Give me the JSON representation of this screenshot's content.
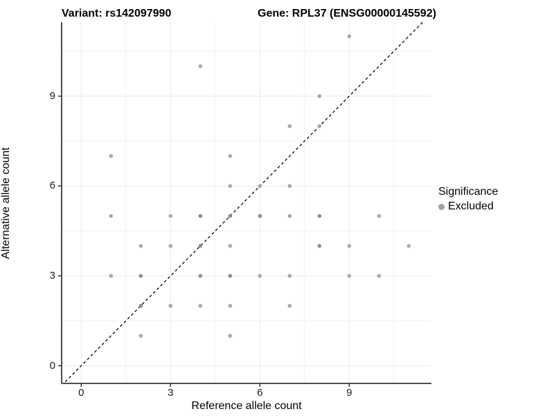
{
  "titles": {
    "variant": "Variant: rs142097990",
    "gene": "Gene: RPL37 (ENSG00000145592)"
  },
  "chart_data": {
    "type": "scatter",
    "xlabel": "Reference allele count",
    "ylabel": "Alternative allele count",
    "x_ticks": [
      0,
      3,
      6,
      9
    ],
    "y_ticks": [
      0,
      3,
      6,
      9
    ],
    "minor_ticks": [
      1.5,
      4.5,
      7.5,
      10.5
    ],
    "xlim": [
      -0.66,
      11.9
    ],
    "ylim": [
      -0.6,
      11.5
    ],
    "grid": "on",
    "identity_line": {
      "equation": "y = x",
      "style": "dashed",
      "color": "#000000"
    },
    "legend": {
      "position": "right",
      "title": "Significance",
      "items": [
        {
          "label": "Excluded",
          "color": "#a3a3a3"
        }
      ]
    },
    "points": [
      {
        "x": 9,
        "y": 11,
        "shade": "light"
      },
      {
        "x": 4,
        "y": 10,
        "shade": "light"
      },
      {
        "x": 8,
        "y": 9,
        "shade": "light"
      },
      {
        "x": 7,
        "y": 8,
        "shade": "light"
      },
      {
        "x": 8,
        "y": 8,
        "shade": "light"
      },
      {
        "x": 1,
        "y": 7,
        "shade": "light"
      },
      {
        "x": 5,
        "y": 7,
        "shade": "light"
      },
      {
        "x": 5,
        "y": 6,
        "shade": "light"
      },
      {
        "x": 6,
        "y": 6,
        "shade": "light"
      },
      {
        "x": 7,
        "y": 6,
        "shade": "light"
      },
      {
        "x": 1,
        "y": 5,
        "shade": "light"
      },
      {
        "x": 3,
        "y": 5,
        "shade": "light"
      },
      {
        "x": 4,
        "y": 5,
        "shade": "dark"
      },
      {
        "x": 5,
        "y": 5,
        "shade": "dark"
      },
      {
        "x": 6,
        "y": 5,
        "shade": "dark"
      },
      {
        "x": 7,
        "y": 5,
        "shade": "light"
      },
      {
        "x": 8,
        "y": 5,
        "shade": "dark"
      },
      {
        "x": 10,
        "y": 5,
        "shade": "light"
      },
      {
        "x": 2,
        "y": 4,
        "shade": "light"
      },
      {
        "x": 3,
        "y": 4,
        "shade": "light"
      },
      {
        "x": 4,
        "y": 4,
        "shade": "dark"
      },
      {
        "x": 5,
        "y": 4,
        "shade": "light"
      },
      {
        "x": 8,
        "y": 4,
        "shade": "dark"
      },
      {
        "x": 9,
        "y": 4,
        "shade": "light"
      },
      {
        "x": 11,
        "y": 4,
        "shade": "light"
      },
      {
        "x": 1,
        "y": 3,
        "shade": "light"
      },
      {
        "x": 2,
        "y": 3,
        "shade": "dark"
      },
      {
        "x": 4,
        "y": 3,
        "shade": "dark"
      },
      {
        "x": 5,
        "y": 3,
        "shade": "dark"
      },
      {
        "x": 6,
        "y": 3,
        "shade": "light"
      },
      {
        "x": 7,
        "y": 3,
        "shade": "light"
      },
      {
        "x": 9,
        "y": 3,
        "shade": "light"
      },
      {
        "x": 10,
        "y": 3,
        "shade": "light"
      },
      {
        "x": 2,
        "y": 2,
        "shade": "dark"
      },
      {
        "x": 3,
        "y": 2,
        "shade": "light"
      },
      {
        "x": 4,
        "y": 2,
        "shade": "light"
      },
      {
        "x": 5,
        "y": 2,
        "shade": "light"
      },
      {
        "x": 7,
        "y": 2,
        "shade": "light"
      },
      {
        "x": 2,
        "y": 1,
        "shade": "light"
      },
      {
        "x": 5,
        "y": 1,
        "shade": "light"
      }
    ]
  },
  "colors": {
    "point_light": "#a9a9a9",
    "point_dark": "#8d8d8d",
    "grid_major": "#e9e9e9",
    "grid_minor": "#f2f2f2",
    "axis_line": "#4d4d4d",
    "tick_mark": "#333333"
  }
}
